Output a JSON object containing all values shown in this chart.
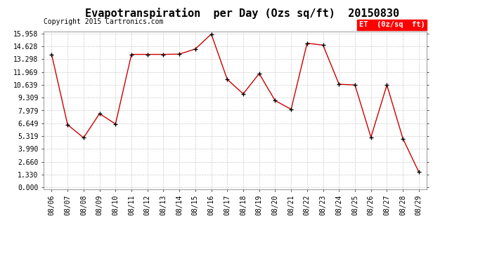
{
  "title": "Evapotranspiration  per Day (Ozs sq/ft)  20150830",
  "copyright": "Copyright 2015 Cartronics.com",
  "legend_label": "ET  (0z/sq  ft)",
  "x_labels": [
    "08/06",
    "08/07",
    "08/08",
    "08/09",
    "08/10",
    "08/11",
    "08/12",
    "08/13",
    "08/14",
    "08/15",
    "08/16",
    "08/17",
    "08/18",
    "08/19",
    "08/20",
    "08/21",
    "08/22",
    "08/23",
    "08/24",
    "08/25",
    "08/26",
    "08/27",
    "08/28",
    "08/29"
  ],
  "et_values": [
    13.79,
    6.5,
    5.15,
    7.65,
    6.58,
    13.79,
    13.79,
    13.79,
    13.82,
    14.35,
    15.9,
    11.2,
    9.7,
    11.8,
    9.0,
    8.1,
    14.95,
    14.75,
    10.7,
    10.62,
    5.2,
    10.62,
    5.07,
    1.6
  ],
  "y_ticks": [
    0.0,
    1.33,
    2.66,
    3.99,
    5.319,
    6.649,
    7.979,
    9.309,
    10.639,
    11.969,
    13.298,
    14.628,
    15.958
  ],
  "y_min": 0.0,
  "y_max": 15.958,
  "line_color": "#cc0000",
  "marker_color": "black",
  "background_color": "white",
  "grid_color": "#cccccc",
  "title_fontsize": 11,
  "copyright_fontsize": 7,
  "tick_fontsize": 7,
  "legend_bg": "red",
  "legend_text_color": "white",
  "legend_fontsize": 7.5
}
